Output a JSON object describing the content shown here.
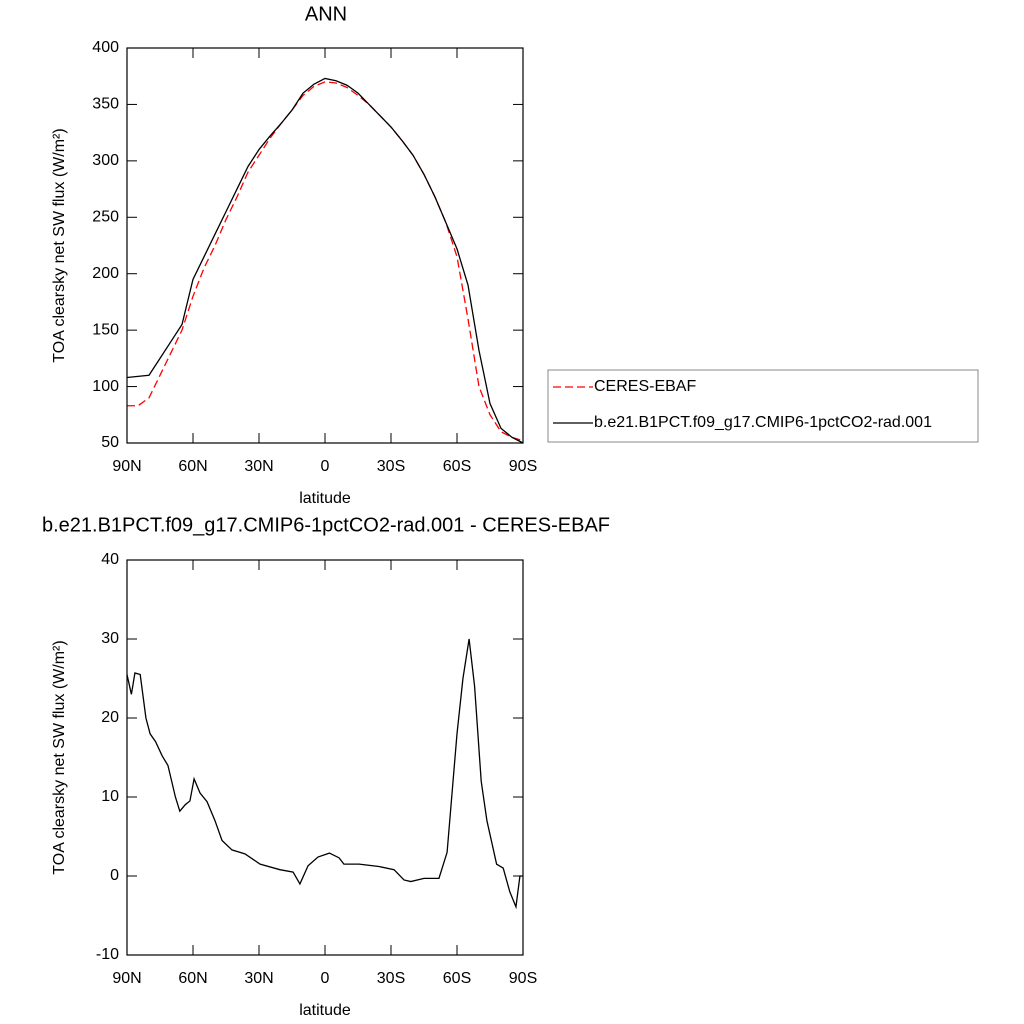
{
  "chart_data": [
    {
      "type": "line",
      "title": "ANN",
      "x_label": "latitude",
      "y_label": "TOA clearsky net SW flux (W/m²)",
      "x": [
        90,
        85,
        80,
        75,
        70,
        65,
        60,
        55,
        50,
        45,
        40,
        35,
        30,
        25,
        20,
        15,
        10,
        5,
        0,
        -5,
        -10,
        -15,
        -20,
        -25,
        -30,
        -35,
        -40,
        -45,
        -50,
        -55,
        -60,
        -65,
        -70,
        -75,
        -80,
        -85,
        -90
      ],
      "series": [
        {
          "name": "CERES-EBAF",
          "color": "#ff0000",
          "dashed": true,
          "values": [
            83,
            83,
            90,
            110,
            130,
            150,
            180,
            205,
            225,
            248,
            268,
            290,
            305,
            320,
            333,
            345,
            358,
            366,
            370,
            369,
            365,
            358,
            350,
            340,
            330,
            318,
            305,
            288,
            268,
            245,
            215,
            160,
            100,
            75,
            60,
            55,
            52
          ]
        },
        {
          "name": "b.e21.B1PCT.f09_g17.CMIP6-1pctCO2-rad.001",
          "color": "#000000",
          "dashed": false,
          "values": [
            108,
            109,
            110,
            125,
            140,
            155,
            195,
            215,
            235,
            255,
            275,
            295,
            310,
            322,
            333,
            345,
            360,
            368,
            373,
            371,
            367,
            360,
            350,
            340,
            330,
            318,
            305,
            288,
            268,
            245,
            222,
            190,
            132,
            85,
            63,
            55,
            50
          ]
        }
      ],
      "xlim": [
        90,
        -90
      ],
      "xticks": [
        {
          "value": 90,
          "label": "90N"
        },
        {
          "value": 60,
          "label": "60N"
        },
        {
          "value": 30,
          "label": "30N"
        },
        0,
        {
          "value": -30,
          "label": "30S"
        },
        {
          "value": -60,
          "label": "60S"
        },
        {
          "value": -90,
          "label": "90S"
        }
      ],
      "ylim": [
        50,
        400
      ],
      "yticks": [
        50,
        100,
        150,
        200,
        250,
        300,
        350,
        400
      ],
      "legend": "right"
    },
    {
      "type": "line",
      "title": "b.e21.B1PCT.f09_g17.CMIP6-1pctCO2-rad.001 - CERES-EBAF",
      "x_label": "latitude",
      "y_label": "TOA clearsky net SW flux (W/m²)",
      "x": [
        90,
        88,
        86.4,
        84,
        81.4,
        79.5,
        77,
        74,
        71.4,
        68,
        66,
        63.6,
        61.4,
        59.5,
        56.8,
        53.6,
        50,
        46.8,
        42.3,
        36.4,
        29.5,
        20.5,
        14.5,
        11.4,
        7.7,
        3.2,
        -2,
        -6.4,
        -8.6,
        -15.5,
        -24.5,
        -31.4,
        -35.9,
        -39,
        -45,
        -51.8,
        -55.5,
        -60,
        -62.7,
        -65.5,
        -68,
        -71,
        -73.6,
        -76,
        -78,
        -81,
        -84,
        -86.8,
        -88.6,
        -90
      ],
      "values": [
        25.5,
        23,
        25.7,
        25.5,
        20,
        18,
        17,
        15.2,
        14,
        10,
        8.2,
        9,
        9.5,
        12.3,
        10.5,
        9.4,
        7,
        4.5,
        3.3,
        2.8,
        1.5,
        0.8,
        0.5,
        -1,
        1.3,
        2.4,
        2.9,
        2.3,
        1.5,
        1.5,
        1.2,
        0.8,
        -0.5,
        -0.7,
        -0.3,
        -0.3,
        3,
        18,
        25,
        30,
        24,
        12,
        7,
        4,
        1.5,
        1,
        -2,
        -3.9,
        0,
        0
      ],
      "color": "#000000",
      "xlim": [
        90,
        -90
      ],
      "xticks": [
        {
          "value": 90,
          "label": "90N"
        },
        {
          "value": 60,
          "label": "60N"
        },
        {
          "value": 30,
          "label": "30N"
        },
        0,
        {
          "value": -30,
          "label": "30S"
        },
        {
          "value": -60,
          "label": "60S"
        },
        {
          "value": -90,
          "label": "90S"
        }
      ],
      "ylim": [
        -10,
        40
      ],
      "yticks": [
        -10,
        0,
        10,
        20,
        30,
        40
      ]
    }
  ]
}
